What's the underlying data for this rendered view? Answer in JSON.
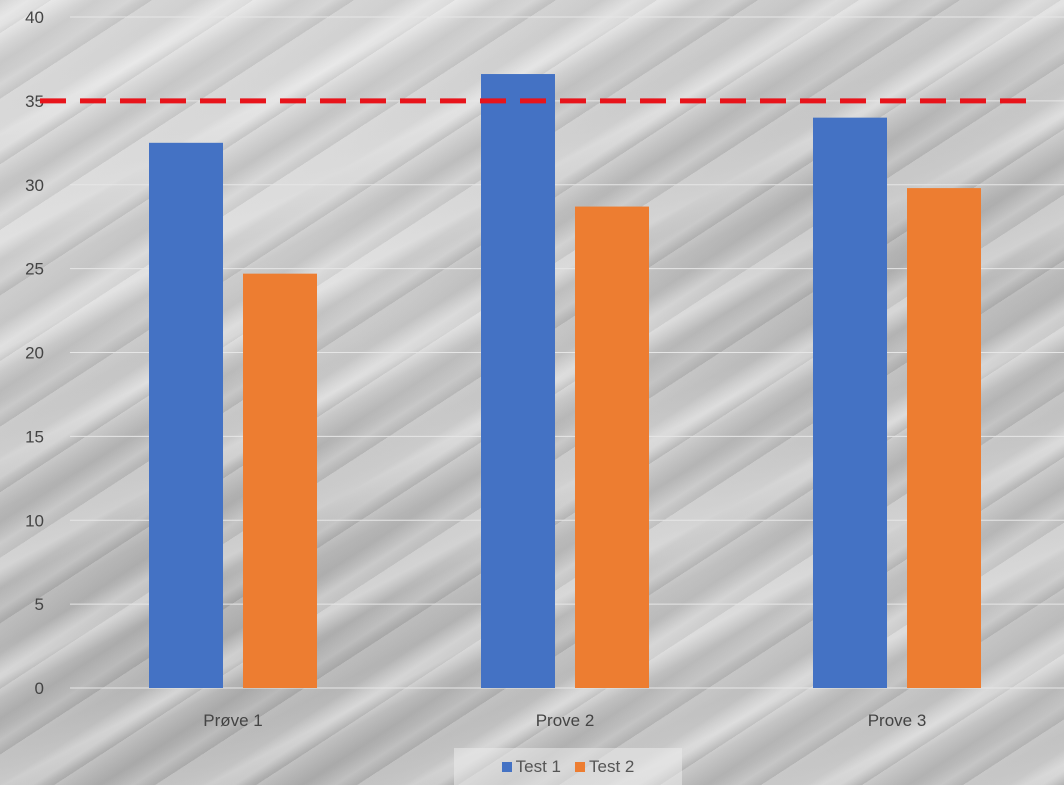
{
  "colors": {
    "series_1": "#4472C4",
    "series_2": "#ED7D31",
    "reference_line": "#E8141B",
    "gridline": "#e6e6e6",
    "tick_text": "#444444"
  },
  "chart_data": {
    "type": "bar",
    "title": "",
    "xlabel": "",
    "ylabel": "",
    "categories": [
      "Prøve 1",
      "Prove 2",
      "Prove 3"
    ],
    "series": [
      {
        "name": "Test 1",
        "values": [
          32.5,
          36.6,
          34.0
        ]
      },
      {
        "name": "Test 2",
        "values": [
          24.7,
          28.7,
          29.8
        ]
      }
    ],
    "ylim": [
      0,
      40
    ],
    "yticks": [
      0,
      5,
      10,
      15,
      20,
      25,
      30,
      35,
      40
    ],
    "grid": true,
    "legend_position": "bottom",
    "reference_line": {
      "value": 35,
      "style": "dashed"
    }
  }
}
